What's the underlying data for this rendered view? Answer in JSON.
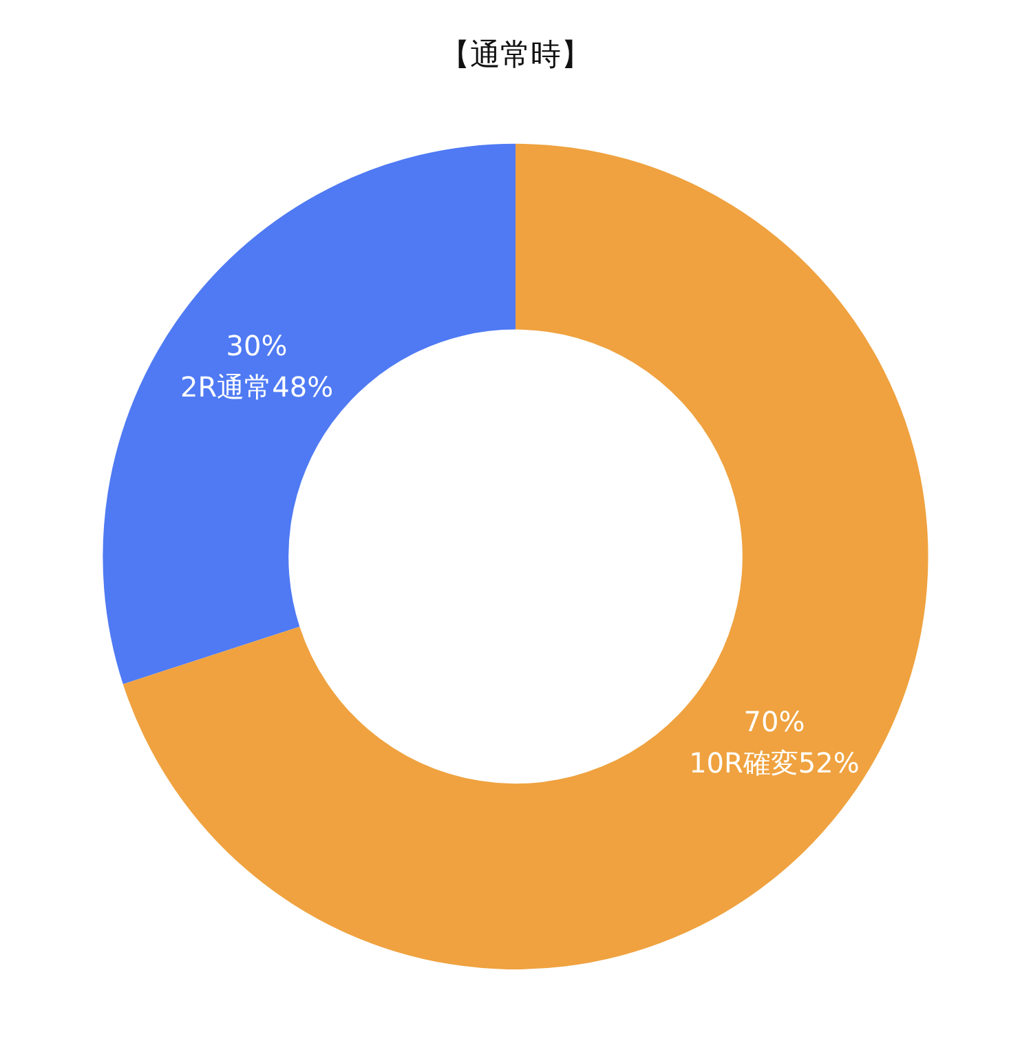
{
  "chart_data": {
    "type": "donut",
    "title": "【通常時】",
    "categories": [
      "2R通常48%",
      "10R確変52%"
    ],
    "values": [
      30,
      70
    ],
    "value_labels": [
      "30%",
      "70%"
    ],
    "colors": [
      "#4f7af3",
      "#efa23f"
    ],
    "legend": false
  }
}
